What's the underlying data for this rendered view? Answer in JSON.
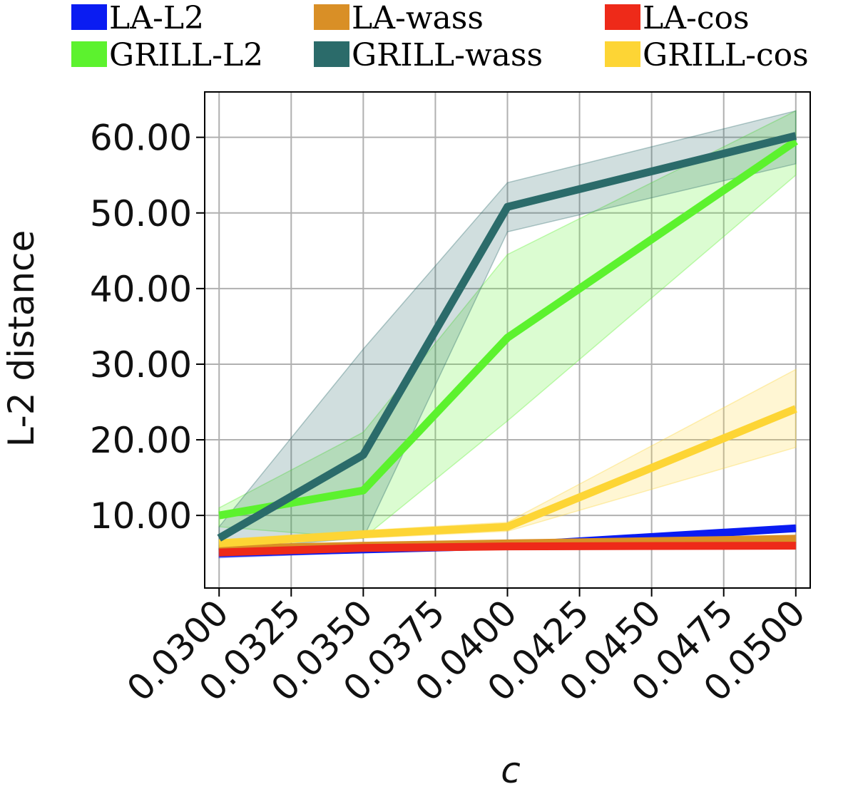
{
  "chart_data": {
    "type": "line",
    "title": "",
    "xlabel": "c",
    "ylabel": "L-2 distance",
    "x": [
      0.03,
      0.035,
      0.04,
      0.05
    ],
    "x_ticks": [
      "0.0300",
      "0.0325",
      "0.0350",
      "0.0375",
      "0.0400",
      "0.0425",
      "0.0450",
      "0.0475",
      "0.0500"
    ],
    "y_ticks": [
      "10.00",
      "20.00",
      "30.00",
      "40.00",
      "50.00",
      "60.00"
    ],
    "xlim": [
      0.0295,
      0.0505
    ],
    "ylim": [
      0.4,
      66.0
    ],
    "grid": true,
    "legend_position": "top",
    "series": [
      {
        "name": "LA-L2",
        "color": "#0a1cf2",
        "values": [
          5.0,
          5.5,
          6.0,
          8.3
        ],
        "band_low": [
          4.4,
          5.1,
          5.7,
          7.9
        ],
        "band_high": [
          5.6,
          5.9,
          6.3,
          8.7
        ]
      },
      {
        "name": "LA-wass",
        "color": "#d98f26",
        "values": [
          5.6,
          6.0,
          6.3,
          6.9
        ],
        "band_low": [
          5.2,
          5.6,
          5.9,
          6.4
        ],
        "band_high": [
          6.0,
          6.4,
          6.7,
          7.4
        ]
      },
      {
        "name": "LA-cos",
        "color": "#ee2a19",
        "values": [
          5.1,
          5.7,
          5.9,
          6.0
        ],
        "band_low": [
          4.6,
          5.2,
          5.5,
          5.6
        ],
        "band_high": [
          5.6,
          6.2,
          6.3,
          6.4
        ]
      },
      {
        "name": "GRILL-L2",
        "color": "#5cf22e",
        "values": [
          10.0,
          13.3,
          33.5,
          59.5
        ],
        "band_low": [
          8.5,
          7.0,
          22.5,
          55.0
        ],
        "band_high": [
          11.0,
          21.0,
          44.5,
          63.5
        ]
      },
      {
        "name": "GRILL-wass",
        "color": "#2b6b6a",
        "values": [
          7.0,
          18.0,
          50.8,
          60.2
        ],
        "band_low": [
          5.5,
          7.0,
          47.5,
          56.5
        ],
        "band_high": [
          8.5,
          32.0,
          54.0,
          63.5
        ]
      },
      {
        "name": "GRILL-cos",
        "color": "#fdd535",
        "values": [
          6.3,
          7.5,
          8.5,
          24.1
        ],
        "band_low": [
          5.8,
          7.0,
          7.9,
          19.0
        ],
        "band_high": [
          6.8,
          8.0,
          9.1,
          29.3
        ]
      }
    ]
  }
}
